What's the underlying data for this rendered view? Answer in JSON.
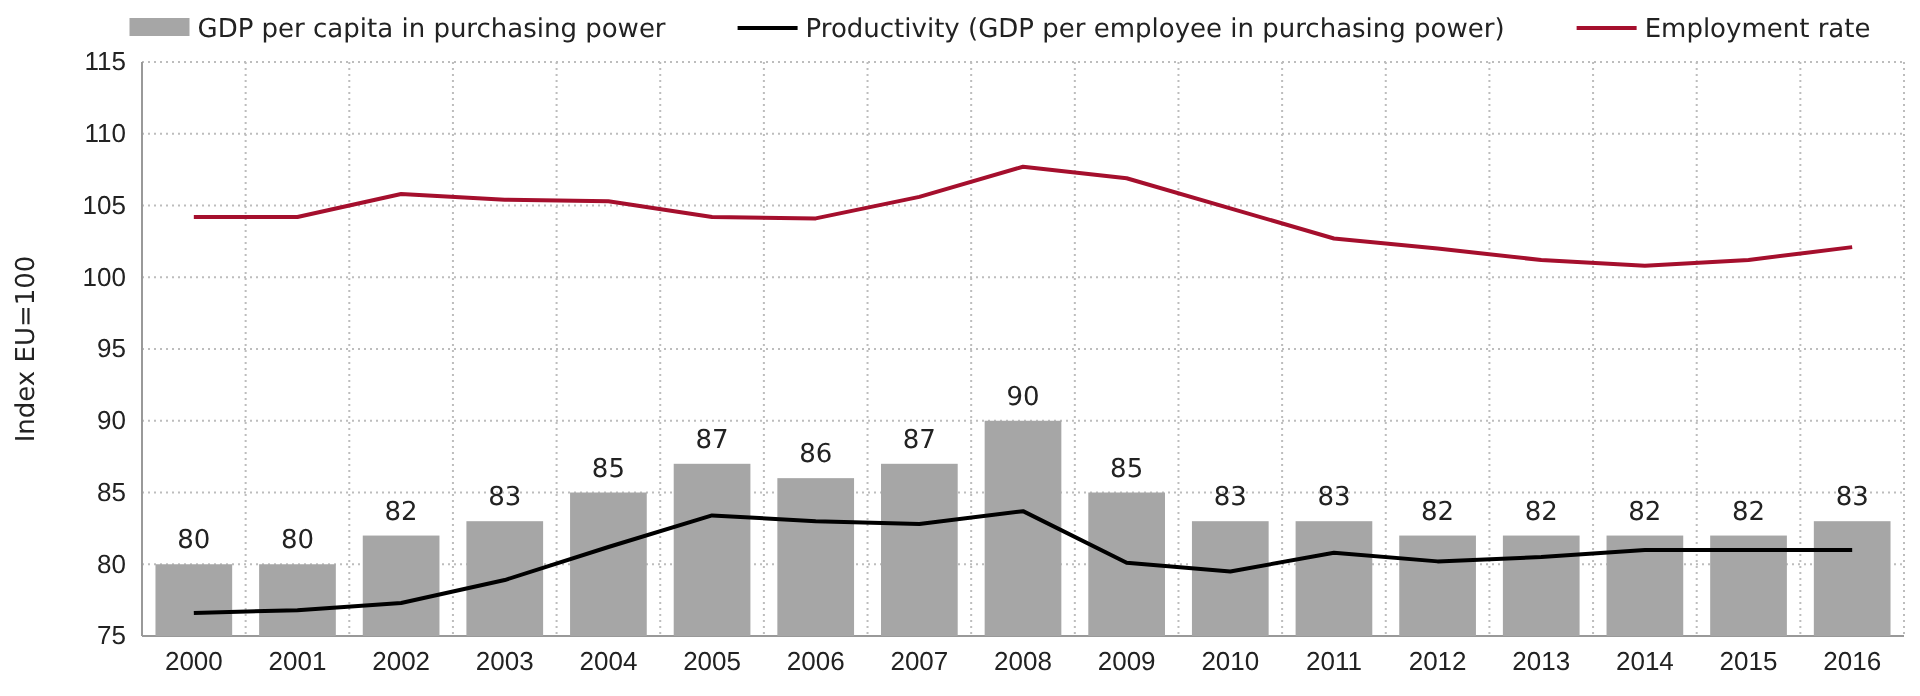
{
  "chart_data": {
    "type": "bar",
    "ylabel": "Index EU=100",
    "categories": [
      "2000",
      "2001",
      "2002",
      "2003",
      "2004",
      "2005",
      "2006",
      "2007",
      "2008",
      "2009",
      "2010",
      "2011",
      "2012",
      "2013",
      "2014",
      "2015",
      "2016"
    ],
    "series": [
      {
        "name": "GDP per capita in purchasing power",
        "color": "#a6a6a6",
        "values": [
          80,
          80,
          82,
          83,
          85,
          87,
          86,
          87,
          90,
          85,
          83,
          83,
          82,
          82,
          82,
          82,
          83
        ],
        "value_labels": [
          "80",
          "80",
          "82",
          "83",
          "85",
          "87",
          "86",
          "87",
          "90",
          "85",
          "83",
          "83",
          "82",
          "82",
          "82",
          "82",
          "83"
        ]
      },
      {
        "name": "Productivity (GDP per employee in purchasing power)",
        "type": "line",
        "color": "#000000",
        "values": [
          76.6,
          76.8,
          77.3,
          78.9,
          81.2,
          83.4,
          83.0,
          82.8,
          83.7,
          80.1,
          79.5,
          80.8,
          80.2,
          80.5,
          81.0,
          81.0,
          81.0
        ]
      },
      {
        "name": "Employment rate",
        "type": "line",
        "color": "#a50f2d",
        "values": [
          104.2,
          104.2,
          105.8,
          105.4,
          105.3,
          104.2,
          104.1,
          105.6,
          107.7,
          106.9,
          104.8,
          102.7,
          102.0,
          101.2,
          100.8,
          101.2,
          102.1
        ]
      }
    ],
    "ylim": [
      75,
      115
    ],
    "yticks": [
      75,
      80,
      85,
      90,
      95,
      100,
      105,
      110,
      115
    ],
    "grid": true,
    "legend": "top"
  }
}
